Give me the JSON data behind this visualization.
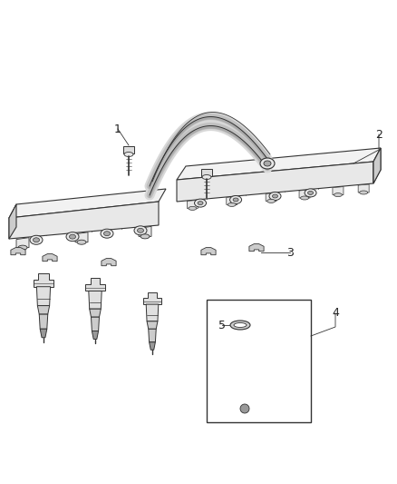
{
  "background_color": "#ffffff",
  "line_color": "#333333",
  "label_color": "#222222",
  "fig_width": 4.38,
  "fig_height": 5.33,
  "dpi": 100,
  "part_colors": {
    "rail_face": "#e8e8e8",
    "rail_top": "#f2f2f2",
    "rail_side": "#cccccc",
    "rail_dark": "#aaaaaa",
    "injector_body": "#e0e0e0",
    "injector_dark": "#999999",
    "injector_mid": "#cccccc",
    "clip_fill": "#cccccc",
    "bolt_fill": "#dddddd",
    "tube_fill": "#d8d8d8",
    "tube_mid": "#c0c0c0",
    "tube_dark": "#aaaaaa"
  }
}
